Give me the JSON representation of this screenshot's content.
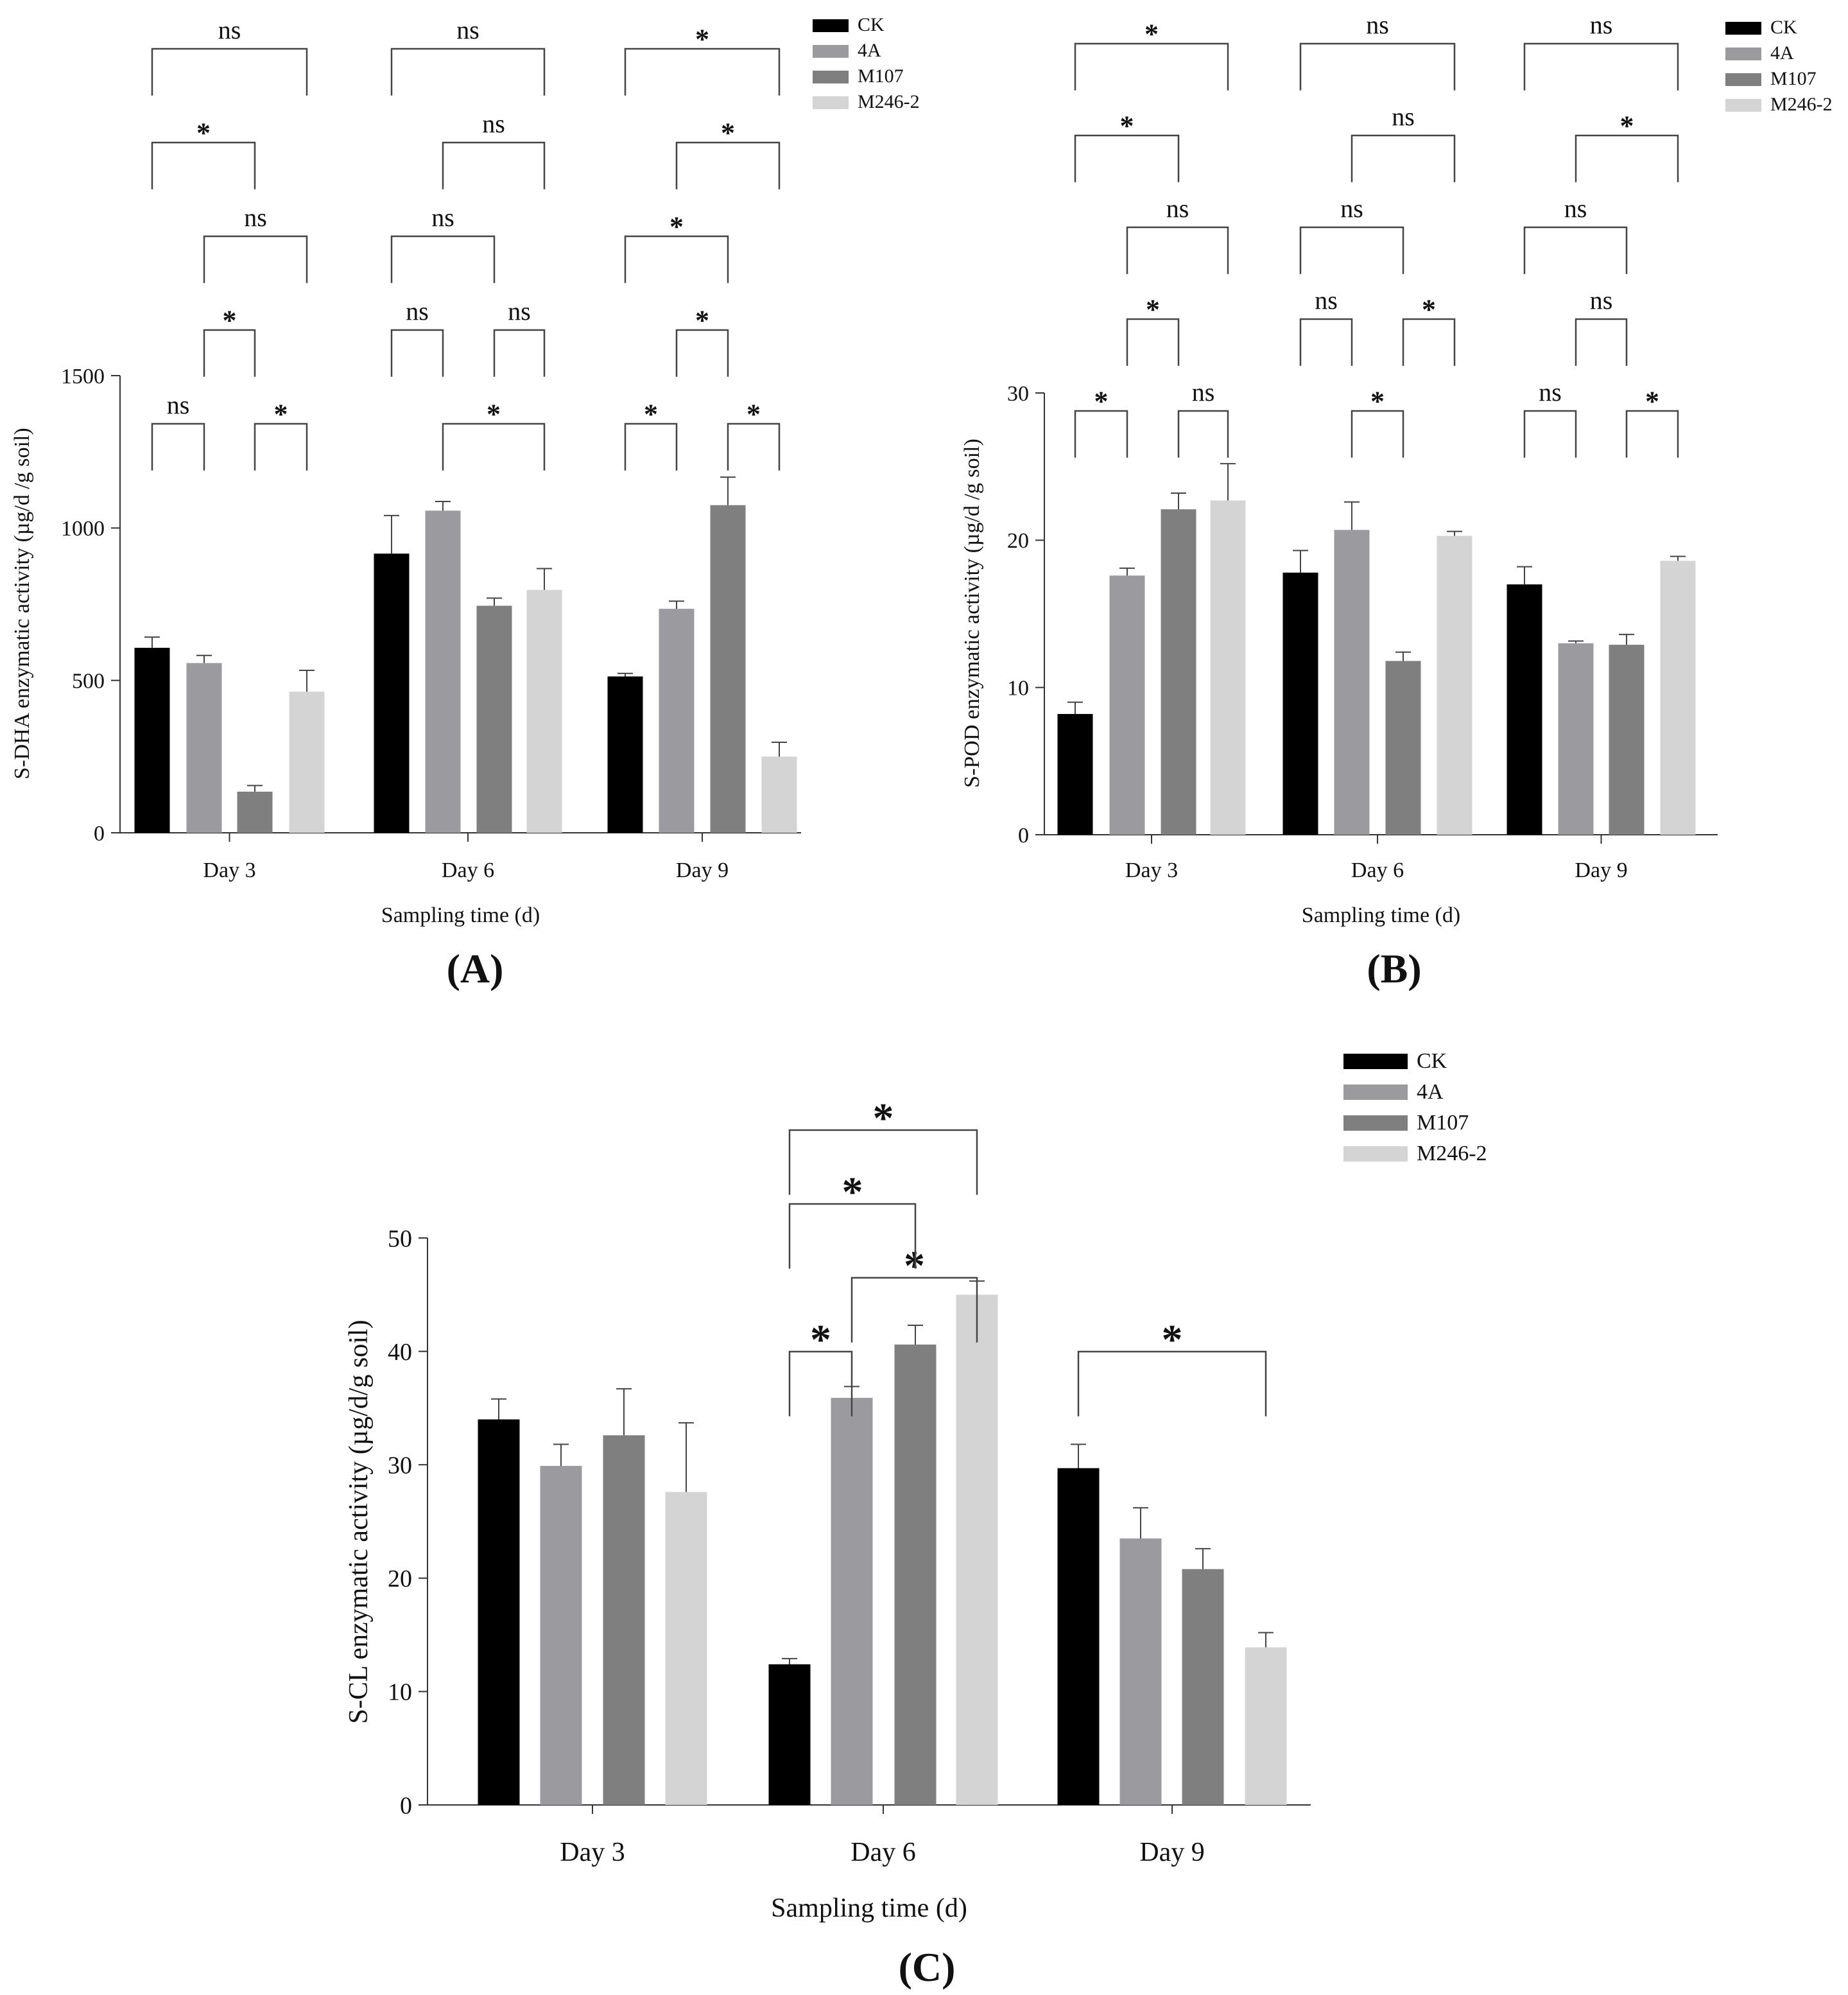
{
  "figure": {
    "panel_labels": [
      "(A)",
      "(B)",
      "(C)"
    ]
  },
  "chart_data": [
    {
      "type": "bar",
      "panel": "(A)",
      "title": "",
      "xlabel": "Sampling time (d)",
      "ylabel": "S-DHA enzymatic activity (µg/d /g soil)",
      "ylim": [
        0,
        1500
      ],
      "yticks": [
        0,
        500,
        1000,
        1500
      ],
      "categories": [
        "Day 3",
        "Day 6",
        "Day 9"
      ],
      "series": [
        {
          "name": "CK",
          "color": "#000000",
          "values": [
            607,
            916,
            513
          ],
          "errors": [
            35,
            125,
            10
          ]
        },
        {
          "name": "4A",
          "color": "#9b9b9f",
          "values": [
            557,
            1057,
            735
          ],
          "errors": [
            25,
            30,
            25
          ]
        },
        {
          "name": "M107",
          "color": "#7f7f7f",
          "values": [
            135,
            745,
            1075
          ],
          "errors": [
            20,
            25,
            92
          ]
        },
        {
          "name": "M246-2",
          "color": "#d4d4d4",
          "values": [
            463,
            797,
            250
          ],
          "errors": [
            70,
            70,
            47
          ]
        }
      ],
      "legend_position": "top-right",
      "comparisons": [
        {
          "day": 0,
          "a": 0,
          "b": 1,
          "label": "ns",
          "level": 0
        },
        {
          "day": 0,
          "a": 1,
          "b": 2,
          "label": "*",
          "level": 1
        },
        {
          "day": 0,
          "a": 2,
          "b": 3,
          "label": "*",
          "level": 0
        },
        {
          "day": 0,
          "a": 1,
          "b": 3,
          "label": "ns",
          "level": 2
        },
        {
          "day": 0,
          "a": 0,
          "b": 2,
          "label": "*",
          "level": 3
        },
        {
          "day": 0,
          "a": 0,
          "b": 3,
          "label": "ns",
          "level": 4
        },
        {
          "day": 1,
          "a": 0,
          "b": 1,
          "label": "ns",
          "level": 1
        },
        {
          "day": 1,
          "a": 1,
          "b": 3,
          "label": "*",
          "level": 0
        },
        {
          "day": 1,
          "a": 2,
          "b": 3,
          "label": "ns",
          "level": 1
        },
        {
          "day": 1,
          "a": 0,
          "b": 2,
          "label": "ns",
          "level": 2
        },
        {
          "day": 1,
          "a": 1,
          "b": 3,
          "label": "ns",
          "level": 3
        },
        {
          "day": 1,
          "a": 0,
          "b": 3,
          "label": "ns",
          "level": 4
        },
        {
          "day": 2,
          "a": 0,
          "b": 1,
          "label": "*",
          "level": 0
        },
        {
          "day": 2,
          "a": 2,
          "b": 3,
          "label": "*",
          "level": 0
        },
        {
          "day": 2,
          "a": 1,
          "b": 2,
          "label": "*",
          "level": 1
        },
        {
          "day": 2,
          "a": 0,
          "b": 2,
          "label": "*",
          "level": 2
        },
        {
          "day": 2,
          "a": 1,
          "b": 3,
          "label": "*",
          "level": 3
        },
        {
          "day": 2,
          "a": 0,
          "b": 3,
          "label": "*",
          "level": 4
        }
      ]
    },
    {
      "type": "bar",
      "panel": "(B)",
      "title": "",
      "xlabel": "Sampling time (d)",
      "ylabel": "S-POD enzymatic activity (µg/d /g soil)",
      "ylim": [
        0,
        30
      ],
      "yticks": [
        0,
        10,
        20,
        30
      ],
      "categories": [
        "Day 3",
        "Day 6",
        "Day 9"
      ],
      "series": [
        {
          "name": "CK",
          "color": "#000000",
          "values": [
            8.2,
            17.8,
            17.0
          ],
          "errors": [
            0.8,
            1.5,
            1.2
          ]
        },
        {
          "name": "4A",
          "color": "#9b9b9f",
          "values": [
            17.6,
            20.7,
            13.0
          ],
          "errors": [
            0.5,
            1.9,
            0.15
          ]
        },
        {
          "name": "M107",
          "color": "#7f7f7f",
          "values": [
            22.1,
            11.8,
            12.9
          ],
          "errors": [
            1.1,
            0.6,
            0.7
          ]
        },
        {
          "name": "M246-2",
          "color": "#d4d4d4",
          "values": [
            22.7,
            20.3,
            18.6
          ],
          "errors": [
            2.5,
            0.3,
            0.3
          ]
        }
      ],
      "legend_position": "top-right",
      "comparisons": [
        {
          "day": 0,
          "a": 0,
          "b": 1,
          "label": "*",
          "level": 0
        },
        {
          "day": 0,
          "a": 2,
          "b": 3,
          "label": "ns",
          "level": 0
        },
        {
          "day": 0,
          "a": 1,
          "b": 2,
          "label": "*",
          "level": 1
        },
        {
          "day": 0,
          "a": 1,
          "b": 3,
          "label": "ns",
          "level": 2
        },
        {
          "day": 0,
          "a": 0,
          "b": 2,
          "label": "*",
          "level": 3
        },
        {
          "day": 0,
          "a": 0,
          "b": 3,
          "label": "*",
          "level": 4
        },
        {
          "day": 1,
          "a": 1,
          "b": 2,
          "label": "*",
          "level": 0
        },
        {
          "day": 1,
          "a": 0,
          "b": 1,
          "label": "ns",
          "level": 1
        },
        {
          "day": 1,
          "a": 2,
          "b": 3,
          "label": "*",
          "level": 1
        },
        {
          "day": 1,
          "a": 0,
          "b": 2,
          "label": "ns",
          "level": 2
        },
        {
          "day": 1,
          "a": 1,
          "b": 3,
          "label": "ns",
          "level": 3
        },
        {
          "day": 1,
          "a": 0,
          "b": 3,
          "label": "ns",
          "level": 4
        },
        {
          "day": 2,
          "a": 0,
          "b": 1,
          "label": "ns",
          "level": 0
        },
        {
          "day": 2,
          "a": 2,
          "b": 3,
          "label": "*",
          "level": 0
        },
        {
          "day": 2,
          "a": 1,
          "b": 2,
          "label": "ns",
          "level": 1
        },
        {
          "day": 2,
          "a": 0,
          "b": 2,
          "label": "ns",
          "level": 2
        },
        {
          "day": 2,
          "a": 1,
          "b": 3,
          "label": "*",
          "level": 3
        },
        {
          "day": 2,
          "a": 0,
          "b": 3,
          "label": "ns",
          "level": 4
        }
      ]
    },
    {
      "type": "bar",
      "panel": "(C)",
      "title": "",
      "xlabel": "Sampling time (d)",
      "ylabel": "S-CL enzymatic activity (µg/d/g soil)",
      "ylim": [
        0,
        50
      ],
      "yticks": [
        0,
        10,
        20,
        30,
        40,
        50
      ],
      "categories": [
        "Day 3",
        "Day 6",
        "Day 9"
      ],
      "series": [
        {
          "name": "CK",
          "color": "#000000",
          "values": [
            34.0,
            12.4,
            29.7
          ],
          "errors": [
            1.8,
            0.5,
            2.1
          ]
        },
        {
          "name": "4A",
          "color": "#9b9b9f",
          "values": [
            29.9,
            35.9,
            23.5
          ],
          "errors": [
            1.9,
            1.0,
            2.7
          ]
        },
        {
          "name": "M107",
          "color": "#7f7f7f",
          "values": [
            32.6,
            40.6,
            20.8
          ],
          "errors": [
            4.1,
            1.7,
            1.8
          ]
        },
        {
          "name": "M246-2",
          "color": "#d4d4d4",
          "values": [
            27.6,
            45.0,
            13.9
          ],
          "errors": [
            6.1,
            1.2,
            1.3
          ]
        }
      ],
      "legend_position": "top-right",
      "comparisons": [
        {
          "day": 1,
          "a": 0,
          "b": 1,
          "label": "*",
          "level": 0
        },
        {
          "day": 1,
          "a": 1,
          "b": 3,
          "label": "*",
          "level": 1
        },
        {
          "day": 1,
          "a": 0,
          "b": 2,
          "label": "*",
          "level": 2
        },
        {
          "day": 1,
          "a": 0,
          "b": 3,
          "label": "*",
          "level": 3
        },
        {
          "day": 2,
          "a": 0,
          "b": 3,
          "label": "*",
          "level": 0
        }
      ]
    }
  ]
}
